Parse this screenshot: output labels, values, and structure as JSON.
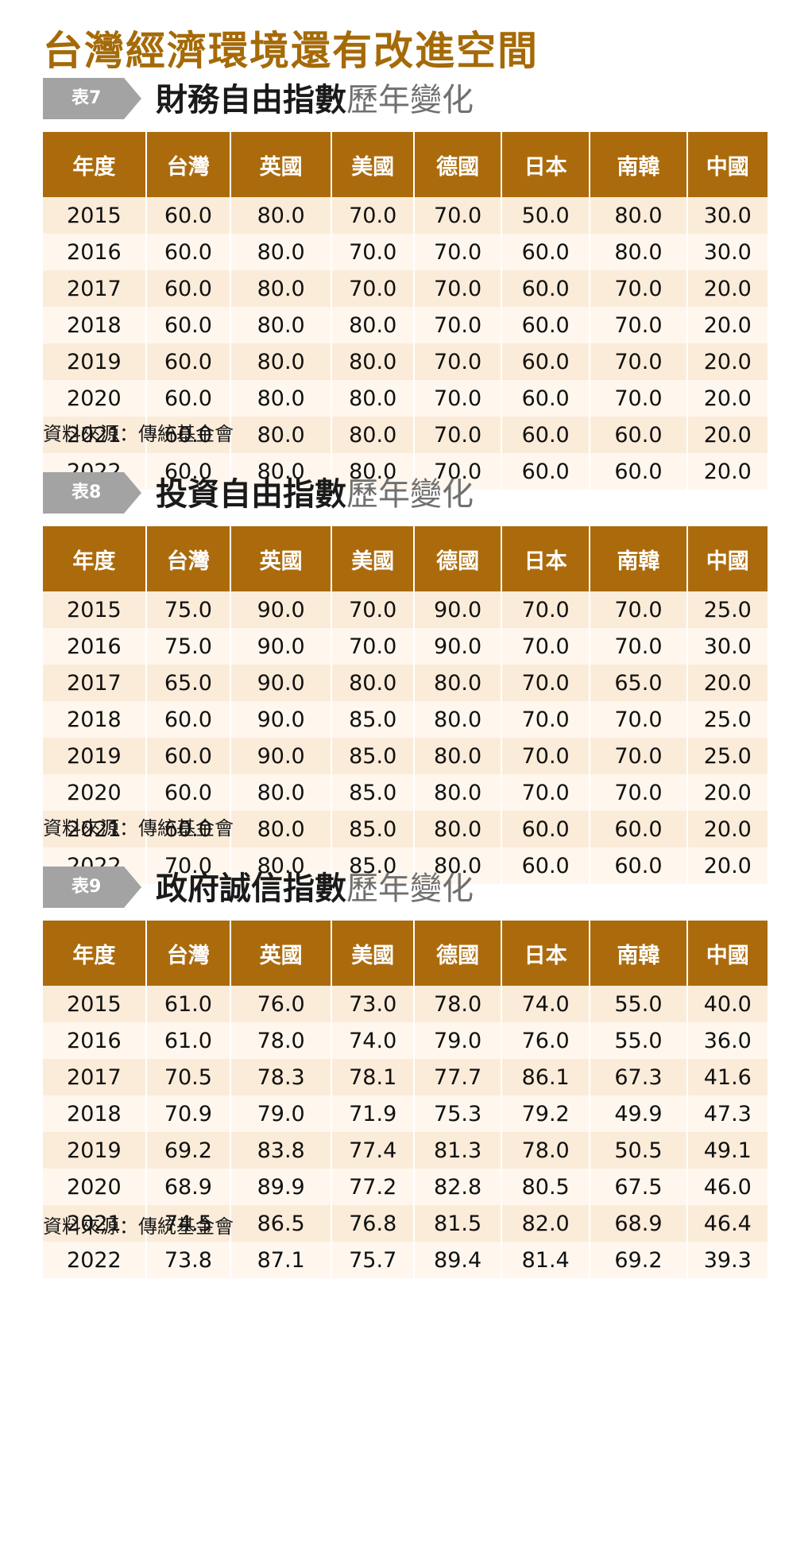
{
  "page_title": "台灣經濟環境還有改進空間",
  "columns": [
    "年度",
    "台灣",
    "英國",
    "美國",
    "德國",
    "日本",
    "南韓",
    "中國"
  ],
  "tables": [
    {
      "tag": "表7",
      "title_main": "財務自由指數",
      "title_suffix": "歷年變化",
      "rows": [
        [
          "2015",
          "60.0",
          "80.0",
          "70.0",
          "70.0",
          "50.0",
          "80.0",
          "30.0"
        ],
        [
          "2016",
          "60.0",
          "80.0",
          "70.0",
          "70.0",
          "60.0",
          "80.0",
          "30.0"
        ],
        [
          "2017",
          "60.0",
          "80.0",
          "70.0",
          "70.0",
          "60.0",
          "70.0",
          "20.0"
        ],
        [
          "2018",
          "60.0",
          "80.0",
          "80.0",
          "70.0",
          "60.0",
          "70.0",
          "20.0"
        ],
        [
          "2019",
          "60.0",
          "80.0",
          "80.0",
          "70.0",
          "60.0",
          "70.0",
          "20.0"
        ],
        [
          "2020",
          "60.0",
          "80.0",
          "80.0",
          "70.0",
          "60.0",
          "70.0",
          "20.0"
        ],
        [
          "2021",
          "60.0",
          "80.0",
          "80.0",
          "70.0",
          "60.0",
          "60.0",
          "20.0"
        ],
        [
          "2022",
          "60.0",
          "80.0",
          "80.0",
          "70.0",
          "60.0",
          "60.0",
          "20.0"
        ]
      ],
      "source": "資料來源：傳統基金會"
    },
    {
      "tag": "表8",
      "title_main": "投資自由指數",
      "title_suffix": "歷年變化",
      "rows": [
        [
          "2015",
          "75.0",
          "90.0",
          "70.0",
          "90.0",
          "70.0",
          "70.0",
          "25.0"
        ],
        [
          "2016",
          "75.0",
          "90.0",
          "70.0",
          "90.0",
          "70.0",
          "70.0",
          "30.0"
        ],
        [
          "2017",
          "65.0",
          "90.0",
          "80.0",
          "80.0",
          "70.0",
          "65.0",
          "20.0"
        ],
        [
          "2018",
          "60.0",
          "90.0",
          "85.0",
          "80.0",
          "70.0",
          "70.0",
          "25.0"
        ],
        [
          "2019",
          "60.0",
          "90.0",
          "85.0",
          "80.0",
          "70.0",
          "70.0",
          "25.0"
        ],
        [
          "2020",
          "60.0",
          "80.0",
          "85.0",
          "80.0",
          "70.0",
          "70.0",
          "20.0"
        ],
        [
          "2021",
          "60.0",
          "80.0",
          "85.0",
          "80.0",
          "60.0",
          "60.0",
          "20.0"
        ],
        [
          "2022",
          "70.0",
          "80.0",
          "85.0",
          "80.0",
          "60.0",
          "60.0",
          "20.0"
        ]
      ],
      "source": "資料來源：傳統基金會"
    },
    {
      "tag": "表9",
      "title_main": "政府誠信指數",
      "title_suffix": "歷年變化",
      "rows": [
        [
          "2015",
          "61.0",
          "76.0",
          "73.0",
          "78.0",
          "74.0",
          "55.0",
          "40.0"
        ],
        [
          "2016",
          "61.0",
          "78.0",
          "74.0",
          "79.0",
          "76.0",
          "55.0",
          "36.0"
        ],
        [
          "2017",
          "70.5",
          "78.3",
          "78.1",
          "77.7",
          "86.1",
          "67.3",
          "41.6"
        ],
        [
          "2018",
          "70.9",
          "79.0",
          "71.9",
          "75.3",
          "79.2",
          "49.9",
          "47.3"
        ],
        [
          "2019",
          "69.2",
          "83.8",
          "77.4",
          "81.3",
          "78.0",
          "50.5",
          "49.1"
        ],
        [
          "2020",
          "68.9",
          "89.9",
          "77.2",
          "82.8",
          "80.5",
          "67.5",
          "46.0"
        ],
        [
          "2021",
          "74.5",
          "86.5",
          "76.8",
          "81.5",
          "82.0",
          "68.9",
          "46.4"
        ],
        [
          "2022",
          "73.8",
          "87.1",
          "75.7",
          "89.4",
          "81.4",
          "69.2",
          "39.3"
        ]
      ],
      "source": "資料來源：傳統基金會"
    }
  ],
  "colors": {
    "title": "#a56a08",
    "header_bg": "#ab6b0d",
    "row_odd": "#fbecd9",
    "row_even": "#fff7ee",
    "tag_bg": "#a3a3a3"
  }
}
